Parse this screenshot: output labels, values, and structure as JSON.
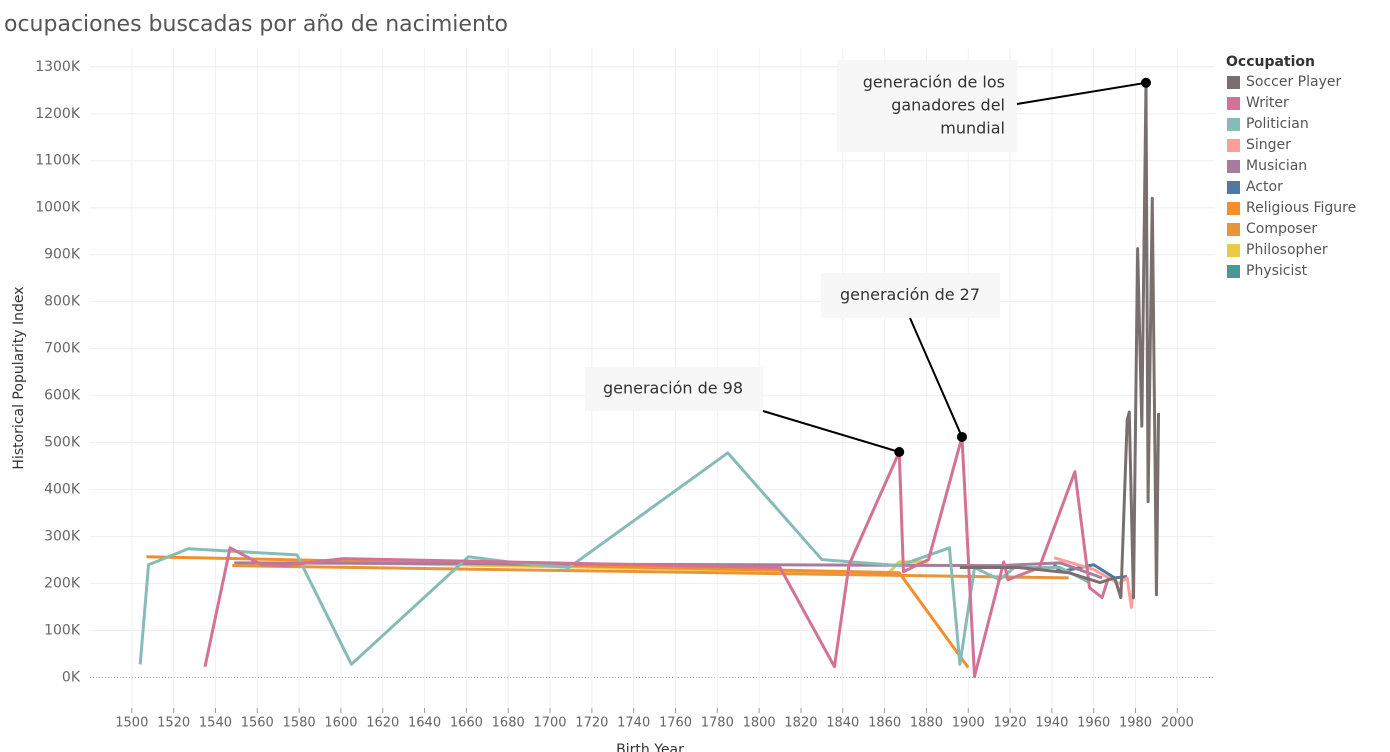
{
  "chart_data": {
    "type": "line",
    "title": "ocupaciones buscadas por año de nacimiento",
    "x_label": "Birth Year",
    "y_label": "Historical Popularity Index",
    "legend_title": "Occupation",
    "legend_position": "right",
    "grid": true,
    "xlim": [
      1480,
      2018
    ],
    "ylim": [
      -65000,
      1340000
    ],
    "xticks": [
      1500,
      1520,
      1540,
      1560,
      1580,
      1600,
      1620,
      1640,
      1660,
      1680,
      1700,
      1720,
      1740,
      1760,
      1780,
      1800,
      1820,
      1840,
      1860,
      1880,
      1900,
      1920,
      1940,
      1960,
      1980,
      2000
    ],
    "yticks": [
      {
        "value": 0,
        "label": "0K"
      },
      {
        "value": 100000,
        "label": "100K"
      },
      {
        "value": 200000,
        "label": "200K"
      },
      {
        "value": 300000,
        "label": "300K"
      },
      {
        "value": 400000,
        "label": "400K"
      },
      {
        "value": 500000,
        "label": "500K"
      },
      {
        "value": 600000,
        "label": "600K"
      },
      {
        "value": 700000,
        "label": "700K"
      },
      {
        "value": 800000,
        "label": "800K"
      },
      {
        "value": 900000,
        "label": "900K"
      },
      {
        "value": 1000000,
        "label": "1000K"
      },
      {
        "value": 1100000,
        "label": "1100K"
      },
      {
        "value": 1200000,
        "label": "1200K"
      },
      {
        "value": 1300000,
        "label": "1300K"
      }
    ],
    "series": [
      {
        "name": "Soccer Player",
        "color": "#79706e",
        "x": [
          1896,
          1924,
          1948,
          1963,
          1970,
          1973,
          1976,
          1977,
          1979,
          1981,
          1983,
          1985,
          1986,
          1988,
          1990,
          1991
        ],
        "values": [
          234000,
          234000,
          223000,
          202000,
          212000,
          170000,
          548000,
          565000,
          170000,
          913000,
          535000,
          1266000,
          374000,
          1020000,
          176000,
          563000
        ]
      },
      {
        "name": "Writer",
        "color": "#d37295",
        "x": [
          1535,
          1547,
          1562,
          1573,
          1601,
          1810,
          1836,
          1843,
          1867,
          1869,
          1881,
          1897,
          1903,
          1917,
          1919,
          1934,
          1951,
          1958,
          1964,
          1967
        ],
        "values": [
          23000,
          276000,
          240000,
          238000,
          253000,
          234000,
          23000,
          240000,
          480000,
          225000,
          251000,
          512000,
          2000,
          246000,
          208000,
          234000,
          438000,
          191000,
          170000,
          212000
        ]
      },
      {
        "name": "Politician",
        "color": "#86bcb6",
        "x": [
          1504,
          1508,
          1527,
          1579,
          1605,
          1661,
          1680,
          1709,
          1785,
          1830,
          1867,
          1891,
          1896,
          1903,
          1915,
          1922,
          1944,
          1958
        ],
        "values": [
          28000,
          240000,
          274000,
          261000,
          28000,
          257000,
          246000,
          234000,
          478000,
          251000,
          238000,
          276000,
          28000,
          234000,
          208000,
          234000,
          234000,
          202000
        ]
      },
      {
        "name": "Singer",
        "color": "#ff9d9a",
        "x": [
          1941,
          1960,
          1972,
          1976,
          1978,
          1979
        ],
        "values": [
          255000,
          230000,
          200000,
          212000,
          149000,
          190000
        ]
      },
      {
        "name": "Musician",
        "color": "#a87c9f",
        "x": [
          1549,
          1915,
          1944,
          1964
        ],
        "values": [
          244000,
          238000,
          244000,
          212000
        ]
      },
      {
        "name": "Actor",
        "color": "#4e79a7",
        "x": [
          1941,
          1944,
          1960,
          1970,
          1976
        ],
        "values": [
          240000,
          225000,
          240000,
          212000,
          215000
        ]
      },
      {
        "name": "Religious Figure",
        "color": "#f28e2b",
        "x": [
          1507,
          1867,
          1900
        ],
        "values": [
          257000,
          223000,
          21000
        ]
      },
      {
        "name": "Composer",
        "color": "#e8953a",
        "x": [
          1548,
          1948
        ],
        "values": [
          238000,
          212000
        ]
      },
      {
        "name": "Philosopher",
        "color": "#edc948",
        "x": [
          1601,
          1862,
          1867,
          1881
        ],
        "values": [
          244000,
          223000,
          246000,
          246000
        ]
      },
      {
        "name": "Physicist",
        "color": "#499894",
        "x": [
          1941,
          1944
        ],
        "values": [
          240000,
          229000
        ]
      }
    ],
    "annotations": [
      {
        "lines": [
          "generación de 98"
        ],
        "x": 1867,
        "y": 480000
      },
      {
        "lines": [
          "generación de 27"
        ],
        "x": 1897,
        "y": 512000
      },
      {
        "lines": [
          "generación de los",
          "ganadores del",
          "mundial"
        ],
        "x": 1985,
        "y": 1266000
      }
    ]
  }
}
